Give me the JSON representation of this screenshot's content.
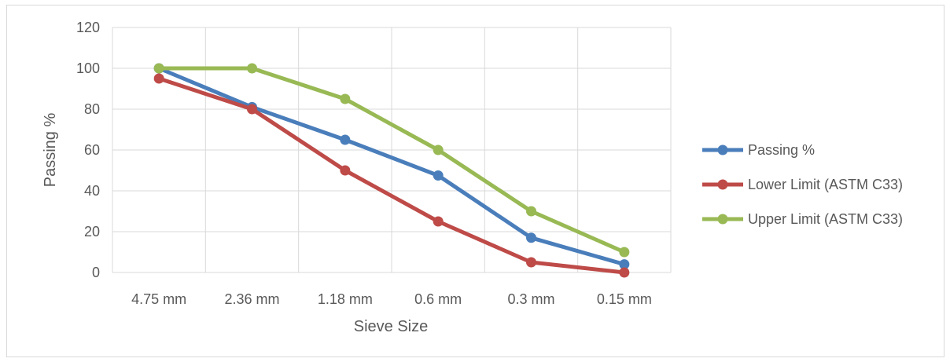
{
  "chart_data": {
    "type": "line",
    "title": "",
    "xlabel": "Sieve Size",
    "ylabel": "Passing %",
    "categories": [
      "4.75 mm",
      "2.36 mm",
      "1.18 mm",
      "0.6 mm",
      "0.3 mm",
      "0.15 mm"
    ],
    "ylim": [
      0,
      120
    ],
    "yticks": [
      0,
      20,
      40,
      60,
      80,
      100,
      120
    ],
    "grid": true,
    "legend_position": "right",
    "series": [
      {
        "name": "Passing %",
        "color": "#4a7ebb",
        "values": [
          100,
          81,
          65,
          47.5,
          17,
          4
        ]
      },
      {
        "name": "Lower Limit (ASTM C33)",
        "color": "#be4b48",
        "values": [
          95,
          80,
          50,
          25,
          5,
          0
        ]
      },
      {
        "name": "Upper Limit (ASTM C33)",
        "color": "#98b954",
        "values": [
          100,
          100,
          85,
          60,
          30,
          10
        ]
      }
    ]
  }
}
